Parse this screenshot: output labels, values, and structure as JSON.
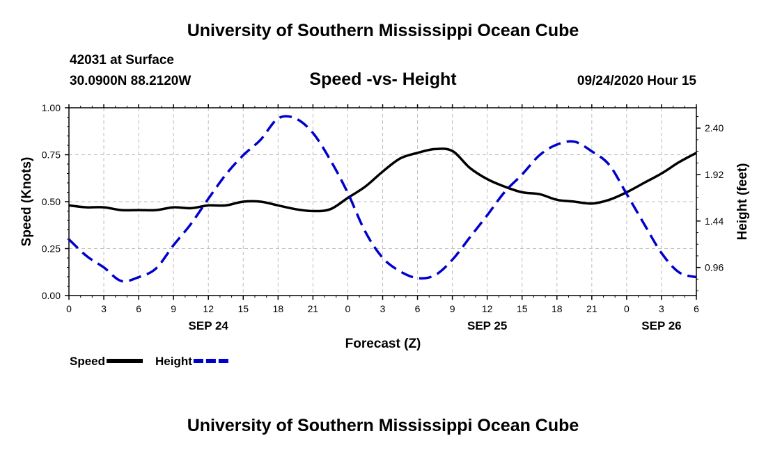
{
  "header": {
    "title": "University of Southern Mississippi Ocean Cube",
    "station": "42031 at Surface",
    "coords": "30.0900N 88.2120W",
    "subtitle": "Speed -vs- Height",
    "datetime": "09/24/2020 Hour 15"
  },
  "footer": {
    "title": "University of Southern Mississippi Ocean Cube"
  },
  "chart_data": {
    "type": "line",
    "xlabel": "Forecast (Z)",
    "ylabel": "Speed (Knots)",
    "y2label": "Height (feet)",
    "xlim": [
      0,
      54
    ],
    "ylim": [
      0,
      1.0
    ],
    "y2lim": [
      0.67,
      2.61
    ],
    "grid": true,
    "x_ticks": [
      0,
      3,
      6,
      9,
      12,
      15,
      18,
      21,
      24,
      27,
      30,
      33,
      36,
      39,
      42,
      45,
      48,
      51,
      54
    ],
    "x_tick_labels": [
      "0",
      "3",
      "6",
      "9",
      "12",
      "15",
      "18",
      "21",
      "0",
      "3",
      "6",
      "9",
      "12",
      "15",
      "18",
      "21",
      "0",
      "3",
      "6"
    ],
    "y_ticks": [
      0.0,
      0.25,
      0.5,
      0.75,
      1.0
    ],
    "y_tick_labels": [
      "0.00",
      "0.25",
      "0.50",
      "0.75",
      "1.00"
    ],
    "y2_ticks": [
      0.96,
      1.44,
      1.92,
      2.4
    ],
    "y2_tick_labels": [
      "0.96",
      "1.44",
      "1.92",
      "2.40"
    ],
    "date_labels": [
      {
        "x": 12,
        "label": "SEP 24"
      },
      {
        "x": 36,
        "label": "SEP 25"
      },
      {
        "x": 51,
        "label": "SEP 26"
      }
    ],
    "legend_position": "bottom-left",
    "series": [
      {
        "name": "Speed",
        "axis": "left",
        "color": "#000000",
        "style": "solid",
        "x": [
          0,
          1.5,
          3,
          4.5,
          6,
          7.5,
          9,
          10.5,
          12,
          13.5,
          15,
          16.5,
          18,
          19.5,
          21,
          22.5,
          24,
          25.5,
          27,
          28.5,
          30,
          31.5,
          33,
          34.5,
          36,
          37.5,
          39,
          40.5,
          42,
          43.5,
          45,
          46.5,
          48,
          49.5,
          51,
          52.5,
          54
        ],
        "values": [
          0.48,
          0.47,
          0.47,
          0.455,
          0.455,
          0.455,
          0.47,
          0.465,
          0.48,
          0.48,
          0.5,
          0.5,
          0.48,
          0.46,
          0.45,
          0.46,
          0.52,
          0.58,
          0.66,
          0.73,
          0.76,
          0.78,
          0.77,
          0.68,
          0.62,
          0.58,
          0.55,
          0.54,
          0.51,
          0.5,
          0.49,
          0.51,
          0.55,
          0.6,
          0.65,
          0.71,
          0.76
        ]
      },
      {
        "name": "Height",
        "axis": "right",
        "color": "#0000cc",
        "style": "dashed",
        "x": [
          0,
          1.5,
          3,
          4.5,
          6,
          7.5,
          9,
          10.5,
          12,
          13.5,
          15,
          16.5,
          18,
          19.5,
          21,
          22.5,
          24,
          25.5,
          27,
          28.5,
          30,
          31.5,
          33,
          34.5,
          36,
          37.5,
          39,
          40.5,
          42,
          43.5,
          45,
          46.5,
          48,
          49.5,
          51,
          52.5,
          54
        ],
        "values": [
          1.25,
          1.08,
          0.96,
          0.82,
          0.86,
          0.95,
          1.19,
          1.41,
          1.67,
          1.92,
          2.12,
          2.28,
          2.5,
          2.5,
          2.35,
          2.07,
          1.73,
          1.33,
          1.06,
          0.92,
          0.85,
          0.88,
          1.04,
          1.27,
          1.5,
          1.74,
          1.92,
          2.12,
          2.23,
          2.26,
          2.16,
          2.02,
          1.72,
          1.41,
          1.11,
          0.91,
          0.86
        ]
      }
    ]
  }
}
